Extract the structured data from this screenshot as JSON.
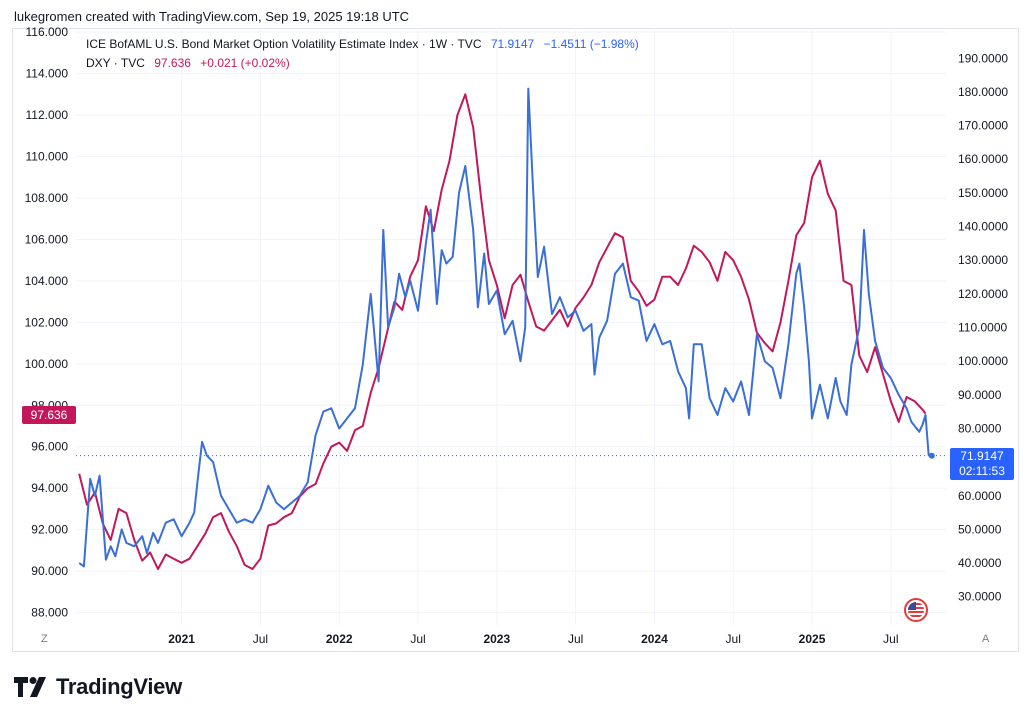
{
  "byline": "lukegromen created with TradingView.com, Sep 19, 2025 19:18 UTC",
  "legend": {
    "series1": {
      "name": "ICE BofAML U.S. Bond Market Option Volatility Estimate Index · 1W · TVC",
      "value": "71.9147",
      "change": "−1.4511 (−1.98%)"
    },
    "series2": {
      "name": "DXY · TVC",
      "value": "97.636",
      "change": "+0.021 (+0.02%)"
    }
  },
  "price_tags": {
    "dxy_last": "97.636",
    "move_last": "71.9147",
    "move_countdown": "02:11:53"
  },
  "corner_buttons": {
    "left": "Z",
    "right": "A"
  },
  "brand": {
    "wordmark": "TradingView"
  },
  "colors": {
    "move": "#2962ff",
    "move_line": "#3a6fd8",
    "dxy": "#c2185b",
    "grid": "#f0f3fa",
    "axis_text": "#131722"
  },
  "chart_data": {
    "type": "line",
    "title": "ICE BofAML U.S. Bond Market Option Volatility Estimate Index vs DXY",
    "x_range": [
      2020.33,
      2025.85
    ],
    "x_ticks": [
      {
        "label": "2021",
        "t": 2021.0,
        "bold": true
      },
      {
        "label": "Jul",
        "t": 2021.5,
        "bold": false
      },
      {
        "label": "2022",
        "t": 2022.0,
        "bold": true
      },
      {
        "label": "Jul",
        "t": 2022.5,
        "bold": false
      },
      {
        "label": "2023",
        "t": 2023.0,
        "bold": true
      },
      {
        "label": "Jul",
        "t": 2023.5,
        "bold": false
      },
      {
        "label": "2024",
        "t": 2024.0,
        "bold": true
      },
      {
        "label": "Jul",
        "t": 2024.5,
        "bold": false
      },
      {
        "label": "2025",
        "t": 2025.0,
        "bold": true
      },
      {
        "label": "Jul",
        "t": 2025.5,
        "bold": false
      }
    ],
    "left_axis": {
      "series": "DXY",
      "ylim": [
        87.4,
        116.2
      ],
      "ticks": [
        "88.000",
        "90.000",
        "92.000",
        "94.000",
        "96.000",
        "98.000",
        "100.000",
        "102.000",
        "104.000",
        "106.000",
        "108.000",
        "110.000",
        "112.000",
        "114.000",
        "116.000"
      ]
    },
    "right_axis": {
      "series": "MOVE",
      "ylim": [
        21.6,
        199.0
      ],
      "ticks": [
        "30.0000",
        "40.0000",
        "50.0000",
        "60.0000",
        "70.0000",
        "80.0000",
        "90.0000",
        "100.0000",
        "110.0000",
        "120.0000",
        "130.0000",
        "140.0000",
        "150.0000",
        "160.0000",
        "170.0000",
        "180.0000",
        "190.0000"
      ]
    },
    "series": [
      {
        "name": "DXY",
        "axis": "left",
        "color": "#c2185b",
        "points": [
          [
            2020.35,
            94.7
          ],
          [
            2020.4,
            93.2
          ],
          [
            2020.45,
            93.8
          ],
          [
            2020.5,
            92.3
          ],
          [
            2020.55,
            91.5
          ],
          [
            2020.6,
            93.0
          ],
          [
            2020.65,
            92.8
          ],
          [
            2020.7,
            91.5
          ],
          [
            2020.75,
            90.5
          ],
          [
            2020.8,
            90.9
          ],
          [
            2020.85,
            90.1
          ],
          [
            2020.9,
            90.8
          ],
          [
            2020.95,
            90.6
          ],
          [
            2021.0,
            90.4
          ],
          [
            2021.05,
            90.6
          ],
          [
            2021.1,
            91.2
          ],
          [
            2021.15,
            91.8
          ],
          [
            2021.2,
            92.6
          ],
          [
            2021.25,
            92.8
          ],
          [
            2021.3,
            91.9
          ],
          [
            2021.35,
            91.2
          ],
          [
            2021.4,
            90.3
          ],
          [
            2021.45,
            90.1
          ],
          [
            2021.5,
            90.6
          ],
          [
            2021.55,
            92.2
          ],
          [
            2021.6,
            92.3
          ],
          [
            2021.65,
            92.6
          ],
          [
            2021.7,
            92.8
          ],
          [
            2021.75,
            93.6
          ],
          [
            2021.8,
            94.0
          ],
          [
            2021.85,
            94.2
          ],
          [
            2021.9,
            95.2
          ],
          [
            2021.95,
            96.0
          ],
          [
            2022.0,
            96.2
          ],
          [
            2022.05,
            95.8
          ],
          [
            2022.1,
            96.8
          ],
          [
            2022.15,
            97.0
          ],
          [
            2022.2,
            98.6
          ],
          [
            2022.25,
            99.8
          ],
          [
            2022.3,
            101.4
          ],
          [
            2022.35,
            103.0
          ],
          [
            2022.4,
            102.6
          ],
          [
            2022.45,
            104.2
          ],
          [
            2022.5,
            105.0
          ],
          [
            2022.55,
            107.6
          ],
          [
            2022.6,
            106.4
          ],
          [
            2022.65,
            108.4
          ],
          [
            2022.7,
            109.8
          ],
          [
            2022.75,
            112.0
          ],
          [
            2022.8,
            113.0
          ],
          [
            2022.85,
            111.4
          ],
          [
            2022.9,
            108.0
          ],
          [
            2022.95,
            105.0
          ],
          [
            2023.0,
            103.8
          ],
          [
            2023.05,
            102.2
          ],
          [
            2023.1,
            103.8
          ],
          [
            2023.15,
            104.3
          ],
          [
            2023.2,
            103.0
          ],
          [
            2023.25,
            101.8
          ],
          [
            2023.3,
            101.6
          ],
          [
            2023.35,
            102.1
          ],
          [
            2023.4,
            102.6
          ],
          [
            2023.45,
            101.8
          ],
          [
            2023.5,
            102.7
          ],
          [
            2023.55,
            103.2
          ],
          [
            2023.6,
            103.8
          ],
          [
            2023.65,
            104.9
          ],
          [
            2023.7,
            105.6
          ],
          [
            2023.75,
            106.3
          ],
          [
            2023.8,
            106.1
          ],
          [
            2023.85,
            104.0
          ],
          [
            2023.9,
            103.5
          ],
          [
            2023.95,
            102.8
          ],
          [
            2024.0,
            103.1
          ],
          [
            2024.05,
            104.2
          ],
          [
            2024.1,
            104.2
          ],
          [
            2024.15,
            103.8
          ],
          [
            2024.2,
            104.6
          ],
          [
            2024.25,
            105.7
          ],
          [
            2024.3,
            105.4
          ],
          [
            2024.35,
            104.9
          ],
          [
            2024.4,
            104.0
          ],
          [
            2024.45,
            105.4
          ],
          [
            2024.5,
            105.0
          ],
          [
            2024.55,
            104.2
          ],
          [
            2024.6,
            103.1
          ],
          [
            2024.65,
            101.5
          ],
          [
            2024.7,
            101.0
          ],
          [
            2024.75,
            100.6
          ],
          [
            2024.8,
            102.0
          ],
          [
            2024.85,
            104.0
          ],
          [
            2024.9,
            106.2
          ],
          [
            2024.95,
            106.8
          ],
          [
            2025.0,
            109.0
          ],
          [
            2025.05,
            109.8
          ],
          [
            2025.1,
            108.2
          ],
          [
            2025.15,
            107.4
          ],
          [
            2025.2,
            104.0
          ],
          [
            2025.25,
            103.8
          ],
          [
            2025.3,
            100.4
          ],
          [
            2025.35,
            99.6
          ],
          [
            2025.4,
            100.8
          ],
          [
            2025.45,
            99.5
          ],
          [
            2025.5,
            98.2
          ],
          [
            2025.55,
            97.2
          ],
          [
            2025.6,
            98.4
          ],
          [
            2025.65,
            98.2
          ],
          [
            2025.7,
            97.8
          ],
          [
            2025.72,
            97.6
          ]
        ]
      },
      {
        "name": "MOVE",
        "axis": "right",
        "color": "#3a6fd8",
        "points": [
          [
            2020.35,
            40.0
          ],
          [
            2020.38,
            39.0
          ],
          [
            2020.42,
            65.0
          ],
          [
            2020.45,
            60.0
          ],
          [
            2020.48,
            66.0
          ],
          [
            2020.52,
            41.0
          ],
          [
            2020.55,
            45.0
          ],
          [
            2020.58,
            42.0
          ],
          [
            2020.62,
            50.0
          ],
          [
            2020.65,
            46.0
          ],
          [
            2020.7,
            45.0
          ],
          [
            2020.75,
            48.0
          ],
          [
            2020.78,
            43.0
          ],
          [
            2020.82,
            49.0
          ],
          [
            2020.85,
            46.0
          ],
          [
            2020.9,
            52.0
          ],
          [
            2020.95,
            53.0
          ],
          [
            2021.0,
            48.0
          ],
          [
            2021.05,
            52.0
          ],
          [
            2021.08,
            55.0
          ],
          [
            2021.1,
            64.0
          ],
          [
            2021.13,
            76.0
          ],
          [
            2021.16,
            72.0
          ],
          [
            2021.2,
            70.0
          ],
          [
            2021.25,
            60.0
          ],
          [
            2021.3,
            56.0
          ],
          [
            2021.35,
            52.0
          ],
          [
            2021.4,
            53.0
          ],
          [
            2021.45,
            52.0
          ],
          [
            2021.5,
            56.0
          ],
          [
            2021.55,
            63.0
          ],
          [
            2021.6,
            58.0
          ],
          [
            2021.65,
            56.0
          ],
          [
            2021.7,
            58.0
          ],
          [
            2021.75,
            60.0
          ],
          [
            2021.8,
            64.0
          ],
          [
            2021.85,
            78.0
          ],
          [
            2021.9,
            85.0
          ],
          [
            2021.95,
            86.0
          ],
          [
            2022.0,
            80.0
          ],
          [
            2022.05,
            83.0
          ],
          [
            2022.1,
            86.0
          ],
          [
            2022.15,
            99.0
          ],
          [
            2022.2,
            120.0
          ],
          [
            2022.25,
            94.0
          ],
          [
            2022.28,
            139.0
          ],
          [
            2022.31,
            110.0
          ],
          [
            2022.35,
            116.0
          ],
          [
            2022.38,
            126.0
          ],
          [
            2022.42,
            119.0
          ],
          [
            2022.45,
            124.0
          ],
          [
            2022.5,
            115.0
          ],
          [
            2022.55,
            135.0
          ],
          [
            2022.58,
            145.0
          ],
          [
            2022.62,
            117.0
          ],
          [
            2022.65,
            133.0
          ],
          [
            2022.68,
            129.0
          ],
          [
            2022.72,
            131.0
          ],
          [
            2022.76,
            150.0
          ],
          [
            2022.8,
            158.0
          ],
          [
            2022.85,
            139.0
          ],
          [
            2022.88,
            116.0
          ],
          [
            2022.92,
            132.0
          ],
          [
            2022.95,
            117.0
          ],
          [
            2023.0,
            121.0
          ],
          [
            2023.05,
            108.0
          ],
          [
            2023.1,
            112.0
          ],
          [
            2023.15,
            100.0
          ],
          [
            2023.18,
            110.0
          ],
          [
            2023.2,
            181.0
          ],
          [
            2023.23,
            151.0
          ],
          [
            2023.26,
            125.0
          ],
          [
            2023.3,
            134.0
          ],
          [
            2023.35,
            114.0
          ],
          [
            2023.4,
            119.0
          ],
          [
            2023.45,
            113.0
          ],
          [
            2023.5,
            115.0
          ],
          [
            2023.55,
            109.0
          ],
          [
            2023.6,
            111.0
          ],
          [
            2023.62,
            96.0
          ],
          [
            2023.65,
            107.0
          ],
          [
            2023.7,
            112.0
          ],
          [
            2023.75,
            126.0
          ],
          [
            2023.8,
            129.0
          ],
          [
            2023.85,
            119.0
          ],
          [
            2023.9,
            118.0
          ],
          [
            2023.95,
            106.0
          ],
          [
            2024.0,
            111.0
          ],
          [
            2024.05,
            105.0
          ],
          [
            2024.1,
            106.0
          ],
          [
            2024.15,
            97.0
          ],
          [
            2024.2,
            92.0
          ],
          [
            2024.22,
            83.0
          ],
          [
            2024.25,
            105.0
          ],
          [
            2024.3,
            105.0
          ],
          [
            2024.35,
            89.0
          ],
          [
            2024.4,
            84.0
          ],
          [
            2024.45,
            92.0
          ],
          [
            2024.5,
            88.0
          ],
          [
            2024.55,
            94.0
          ],
          [
            2024.6,
            84.0
          ],
          [
            2024.65,
            108.0
          ],
          [
            2024.7,
            100.0
          ],
          [
            2024.75,
            98.0
          ],
          [
            2024.8,
            89.0
          ],
          [
            2024.85,
            105.0
          ],
          [
            2024.9,
            126.0
          ],
          [
            2024.92,
            129.0
          ],
          [
            2024.95,
            116.0
          ],
          [
            2024.98,
            100.0
          ],
          [
            2025.0,
            83.0
          ],
          [
            2025.05,
            93.0
          ],
          [
            2025.1,
            83.0
          ],
          [
            2025.15,
            95.0
          ],
          [
            2025.18,
            88.0
          ],
          [
            2025.22,
            84.0
          ],
          [
            2025.25,
            99.0
          ],
          [
            2025.3,
            110.0
          ],
          [
            2025.33,
            139.0
          ],
          [
            2025.36,
            120.0
          ],
          [
            2025.4,
            106.0
          ],
          [
            2025.45,
            98.0
          ],
          [
            2025.5,
            95.0
          ],
          [
            2025.55,
            90.0
          ],
          [
            2025.6,
            86.0
          ],
          [
            2025.63,
            82.0
          ],
          [
            2025.68,
            79.0
          ],
          [
            2025.7,
            81.0
          ],
          [
            2025.72,
            84.0
          ],
          [
            2025.74,
            72.0
          ],
          [
            2025.76,
            71.9
          ]
        ]
      }
    ],
    "last_price_line": {
      "series": "MOVE",
      "value": 71.9147
    }
  }
}
